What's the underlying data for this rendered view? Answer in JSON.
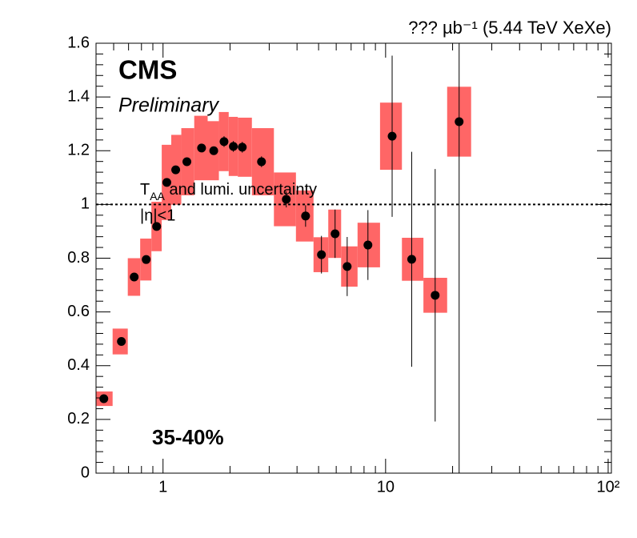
{
  "chart_data": {
    "type": "scatter",
    "title": "??? µb⁻¹ (5.44 TeV XeXe)",
    "experiment": "CMS",
    "status": "Preliminary",
    "centrality": "35-40%",
    "legend_lines": [
      "T",
      "AA",
      " and lumi. uncertainty",
      "|η|<1"
    ],
    "x": [
      0.542,
      0.65,
      0.742,
      0.84,
      0.936,
      1.04,
      1.14,
      1.28,
      1.49,
      1.69,
      1.88,
      2.07,
      2.27,
      2.77,
      3.58,
      4.37,
      5.15,
      5.93,
      6.72,
      8.33,
      10.7,
      13.1,
      16.7,
      21.4
    ],
    "series": [
      {
        "color": "#000000",
        "box_color": "#ff6666",
        "values": [
          0.277,
          0.49,
          0.73,
          0.795,
          0.918,
          1.082,
          1.129,
          1.159,
          1.21,
          1.2,
          1.234,
          1.216,
          1.213,
          1.159,
          1.019,
          0.957,
          0.813,
          0.891,
          0.769,
          0.849,
          1.254,
          0.796,
          0.662,
          1.308
        ],
        "errors": [
          0.01,
          0.01,
          0.01,
          0.01,
          0.015,
          0.015,
          0.015,
          0.015,
          0.015,
          0.015,
          0.02,
          0.02,
          0.02,
          0.02,
          0.03,
          0.04,
          0.07,
          0.09,
          0.11,
          0.13,
          0.3,
          0.4,
          0.47,
          1.31
        ],
        "sys_errors": [
          0.027,
          0.048,
          0.07,
          0.078,
          0.092,
          0.14,
          0.13,
          0.125,
          0.12,
          0.11,
          0.11,
          0.11,
          0.11,
          0.125,
          0.1,
          0.095,
          0.065,
          0.09,
          0.075,
          0.083,
          0.125,
          0.08,
          0.065,
          0.13
        ]
      }
    ],
    "reference_line": 1,
    "xlim": [
      0.5,
      103.4
    ],
    "log_x": true,
    "xticks": [
      1,
      10,
      {
        "value": 100,
        "label": "10²"
      }
    ],
    "ylim": [
      0,
      1.6
    ],
    "yticks": [
      0,
      0.2,
      0.4,
      0.6,
      0.8,
      1,
      1.2,
      1.4,
      1.6
    ]
  }
}
